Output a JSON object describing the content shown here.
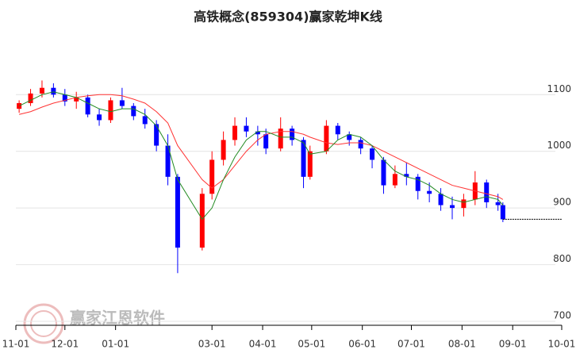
{
  "chart_data": {
    "type": "candlestick",
    "title": "高铁概念(859304)赢家乾坤K线",
    "watermark": "赢家江恩软件",
    "x": [
      "11-03",
      "11-10",
      "11-17",
      "11-24",
      "12-01",
      "12-08",
      "12-15",
      "12-22",
      "12-29",
      "01-05",
      "01-12",
      "01-19",
      "01-26",
      "02-02",
      "02-08",
      "02-23",
      "03-01",
      "03-08",
      "03-15",
      "03-22",
      "03-29",
      "04-03",
      "04-12",
      "04-19",
      "04-26",
      "04-30",
      "05-10",
      "05-17",
      "05-24",
      "05-31",
      "06-07",
      "06-14",
      "06-21",
      "06-28",
      "07-05",
      "07-12",
      "07-19",
      "07-26",
      "08-02",
      "08-09",
      "08-16",
      "08-23",
      "08-26"
    ],
    "open": [
      1075,
      1085,
      1102,
      1112,
      1100,
      1088,
      1095,
      1065,
      1055,
      1090,
      1080,
      1062,
      1048,
      1010,
      955,
      830,
      925,
      985,
      1020,
      1045,
      1035,
      1030,
      1005,
      1040,
      1020,
      955,
      1000,
      1045,
      1030,
      1020,
      1005,
      985,
      940,
      960,
      955,
      930,
      925,
      905,
      900,
      915,
      945,
      910,
      905
    ],
    "high": [
      1090,
      1110,
      1125,
      1120,
      1110,
      1105,
      1100,
      1075,
      1095,
      1112,
      1085,
      1075,
      1055,
      1030,
      960,
      935,
      1000,
      1035,
      1060,
      1060,
      1045,
      1040,
      1060,
      1045,
      1025,
      1010,
      1055,
      1050,
      1035,
      1025,
      1010,
      990,
      975,
      980,
      960,
      945,
      935,
      920,
      925,
      965,
      950,
      925,
      910
    ],
    "low": [
      1068,
      1080,
      1095,
      1095,
      1080,
      1075,
      1060,
      1045,
      1050,
      1075,
      1055,
      1040,
      1000,
      940,
      785,
      825,
      915,
      975,
      1010,
      1025,
      1010,
      995,
      1000,
      1010,
      935,
      950,
      995,
      1020,
      1010,
      995,
      970,
      925,
      935,
      940,
      915,
      910,
      895,
      880,
      885,
      905,
      900,
      895,
      875
    ],
    "close": [
      1085,
      1102,
      1112,
      1100,
      1088,
      1095,
      1065,
      1055,
      1090,
      1080,
      1062,
      1048,
      1010,
      955,
      830,
      925,
      985,
      1020,
      1045,
      1035,
      1030,
      1005,
      1040,
      1020,
      955,
      1000,
      1045,
      1030,
      1020,
      1005,
      985,
      940,
      960,
      955,
      930,
      925,
      905,
      900,
      915,
      945,
      910,
      905,
      880
    ],
    "up_color": "#ff0000",
    "down_color": "#0000ff",
    "lines": [
      {
        "color": "#ff3333",
        "values": [
          1065,
          1070,
          1078,
          1085,
          1090,
          1095,
          1098,
          1100,
          1100,
          1098,
          1092,
          1085,
          1070,
          1050,
          1010,
          950,
          935,
          950,
          975,
          1000,
          1020,
          1030,
          1035,
          1035,
          1030,
          1025,
          1015,
          1012,
          1015,
          1015,
          1010,
          1000,
          990,
          980,
          970,
          960,
          950,
          940,
          935,
          930,
          925,
          920,
          915
        ]
      },
      {
        "color": "#228b22",
        "values": [
          1080,
          1090,
          1100,
          1105,
          1100,
          1095,
          1085,
          1075,
          1070,
          1075,
          1075,
          1065,
          1045,
          1010,
          950,
          880,
          900,
          950,
          990,
          1020,
          1035,
          1035,
          1025,
          1025,
          1015,
          995,
          1000,
          1020,
          1030,
          1025,
          1010,
          985,
          965,
          955,
          950,
          940,
          925,
          915,
          910,
          915,
          920,
          915,
          905
        ]
      }
    ],
    "last_price_line": 880,
    "xlim": [
      "11-01",
      "10-01"
    ],
    "xticks": [
      "11-01",
      "12-01",
      "01-01",
      "03-01",
      "04-01",
      "05-01",
      "06-01",
      "07-01",
      "08-01",
      "09-01",
      "10-01"
    ],
    "ylim": [
      693,
      1204
    ],
    "yticks": [
      700,
      800,
      900,
      1000,
      1100
    ],
    "grid": true
  }
}
